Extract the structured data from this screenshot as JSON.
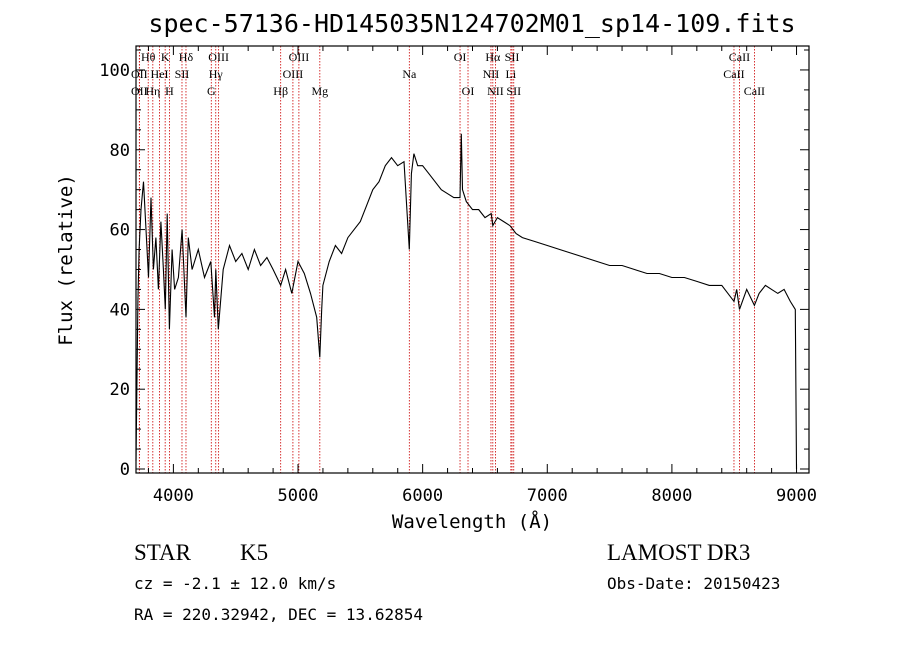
{
  "chart_data": {
    "type": "line",
    "title": "spec-57136-HD145035N124702M01_sp14-109.fits",
    "xlabel": "Wavelength (Å)",
    "ylabel": "Flux (relative)",
    "xlim": [
      3700,
      9100
    ],
    "ylim": [
      -1,
      106
    ],
    "x_ticks": [
      4000,
      5000,
      6000,
      7000,
      8000,
      9000
    ],
    "x_tick_labels": [
      "4000",
      "5000",
      "6000",
      "7000",
      "8000",
      "9000"
    ],
    "y_ticks": [
      0,
      20,
      40,
      60,
      80,
      100
    ],
    "y_tick_labels": [
      "0",
      "20",
      "40",
      "60",
      "80",
      "100"
    ],
    "grid": false,
    "series": [
      {
        "color": "#000000",
        "x": [
          3700,
          3715,
          3725,
          3740,
          3760,
          3780,
          3800,
          3820,
          3840,
          3860,
          3880,
          3900,
          3920,
          3935,
          3950,
          3968,
          3990,
          4010,
          4040,
          4070,
          4101,
          4120,
          4150,
          4200,
          4250,
          4300,
          4330,
          4340,
          4360,
          4400,
          4450,
          4500,
          4550,
          4600,
          4650,
          4700,
          4750,
          4800,
          4861,
          4900,
          4950,
          5000,
          5050,
          5100,
          5150,
          5175,
          5190,
          5200,
          5250,
          5300,
          5350,
          5400,
          5450,
          5500,
          5550,
          5600,
          5650,
          5700,
          5750,
          5800,
          5850,
          5893,
          5910,
          5930,
          5960,
          6000,
          6050,
          6100,
          6150,
          6200,
          6250,
          6300,
          6310,
          6320,
          6350,
          6400,
          6450,
          6500,
          6550,
          6563,
          6600,
          6650,
          6700,
          6750,
          6800,
          6900,
          7000,
          7100,
          7200,
          7300,
          7400,
          7500,
          7600,
          7700,
          7800,
          7900,
          8000,
          8100,
          8200,
          8300,
          8400,
          8498,
          8520,
          8542,
          8600,
          8662,
          8700,
          8750,
          8800,
          8850,
          8900,
          8950,
          8990,
          9000
        ],
        "y": [
          2,
          42,
          55,
          65,
          72,
          60,
          48,
          68,
          50,
          58,
          45,
          62,
          50,
          40,
          64,
          35,
          55,
          45,
          48,
          60,
          38,
          58,
          50,
          55,
          48,
          52,
          38,
          50,
          35,
          50,
          56,
          52,
          54,
          50,
          55,
          51,
          53,
          50,
          46,
          50,
          44,
          52,
          49,
          44,
          38,
          28,
          40,
          46,
          52,
          56,
          54,
          58,
          60,
          62,
          66,
          70,
          72,
          76,
          78,
          76,
          77,
          55,
          74,
          79,
          76,
          76,
          74,
          72,
          70,
          69,
          68,
          68,
          84,
          70,
          67,
          65,
          65,
          63,
          64,
          61,
          63,
          62,
          61,
          59,
          58,
          57,
          56,
          55,
          54,
          53,
          52,
          51,
          51,
          50,
          49,
          49,
          48,
          48,
          47,
          46,
          46,
          42,
          45,
          40,
          45,
          41,
          44,
          46,
          45,
          44,
          45,
          42,
          40,
          0
        ]
      }
    ],
    "line_markers": [
      {
        "label": "Hθ",
        "x": 3798,
        "row": 1
      },
      {
        "label": "OII",
        "x": 3727,
        "row": 2
      },
      {
        "label": "Hη",
        "x": 3835,
        "row": 3
      },
      {
        "label": "OII",
        "x": 3727,
        "row": 3
      },
      {
        "label": "HeI",
        "x": 3889,
        "row": 2
      },
      {
        "label": "K",
        "x": 3934,
        "row": 1
      },
      {
        "label": "H",
        "x": 3968,
        "row": 3
      },
      {
        "label": "SII",
        "x": 4069,
        "row": 2
      },
      {
        "label": "Hδ",
        "x": 4101,
        "row": 1
      },
      {
        "label": "OIII",
        "x": 4363,
        "row": 1
      },
      {
        "label": "Hγ",
        "x": 4340,
        "row": 2
      },
      {
        "label": "G",
        "x": 4304,
        "row": 3
      },
      {
        "label": "Hβ",
        "x": 4861,
        "row": 3
      },
      {
        "label": "OIII",
        "x": 5007,
        "row": 1
      },
      {
        "label": "OIII",
        "x": 4959,
        "row": 2
      },
      {
        "label": "Mg",
        "x": 5175,
        "row": 3
      },
      {
        "label": "Na",
        "x": 5893,
        "row": 2
      },
      {
        "label": "OI",
        "x": 6300,
        "row": 1
      },
      {
        "label": "OI",
        "x": 6364,
        "row": 3
      },
      {
        "label": "Hα",
        "x": 6563,
        "row": 1
      },
      {
        "label": "NII",
        "x": 6548,
        "row": 2
      },
      {
        "label": "NII",
        "x": 6584,
        "row": 3
      },
      {
        "label": "SII",
        "x": 6717,
        "row": 1
      },
      {
        "label": "Li",
        "x": 6708,
        "row": 2
      },
      {
        "label": "SII",
        "x": 6731,
        "row": 3
      },
      {
        "label": "CaII",
        "x": 8542,
        "row": 1
      },
      {
        "label": "CaII",
        "x": 8498,
        "row": 2
      },
      {
        "label": "CaII",
        "x": 8662,
        "row": 3
      }
    ]
  },
  "info": {
    "class_label": "STAR",
    "subclass_label": "K5",
    "survey": "LAMOST DR3",
    "cz": "cz = -2.1 ± 12.0 km/s",
    "obs_date": "Obs-Date: 20150423",
    "radec": "RA = 220.32942, DEC =  13.62854"
  }
}
